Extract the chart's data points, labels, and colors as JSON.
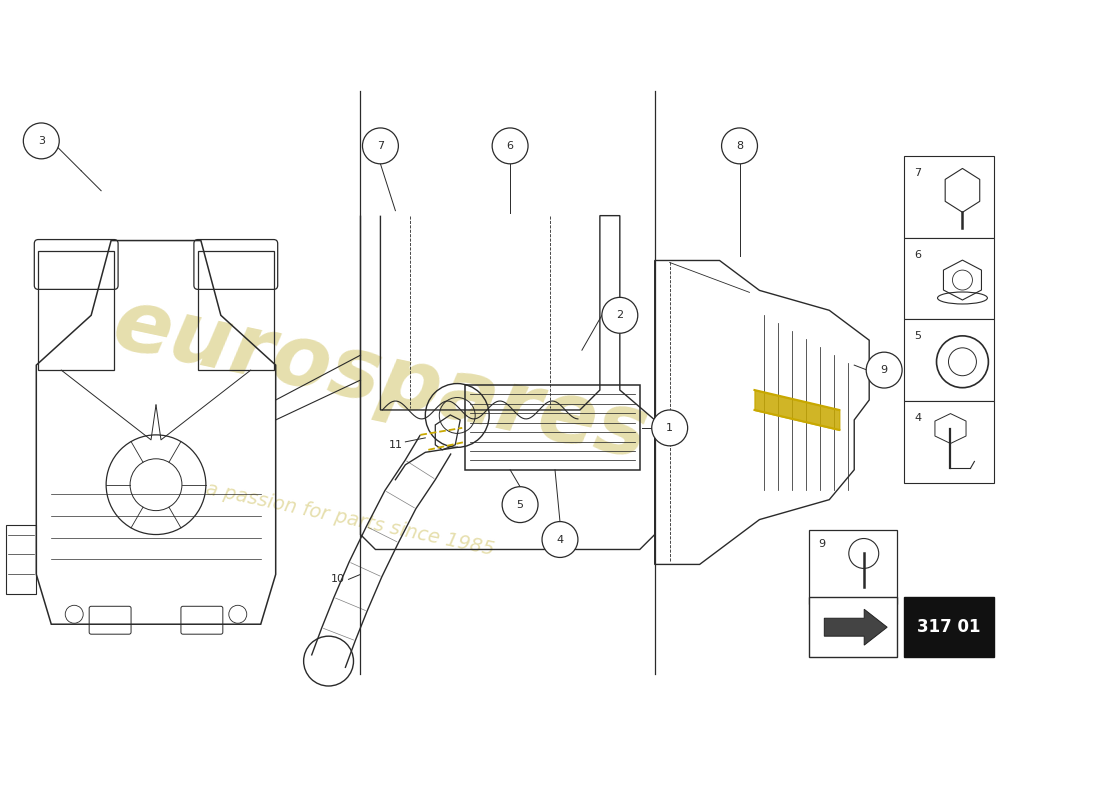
{
  "bg_color": "#ffffff",
  "watermark_text": "eurospares",
  "watermark_subtext": "a passion for parts since 1985",
  "watermark_color": "#c8b84a",
  "page_code": "317 01",
  "line_color": "#2a2a2a",
  "fig_w": 11.0,
  "fig_h": 8.0,
  "dpi": 100
}
